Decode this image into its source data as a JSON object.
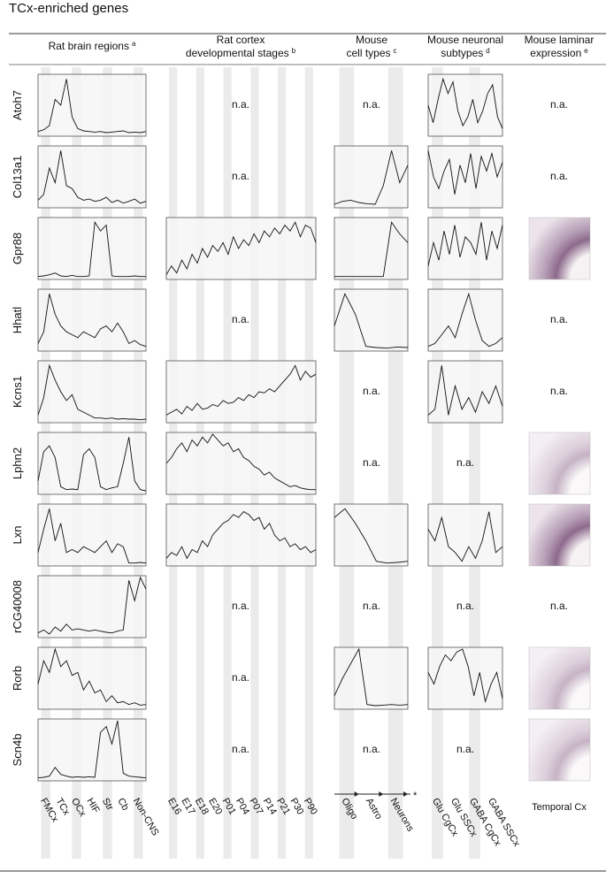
{
  "title": "TCx-enriched genes",
  "ylim": [
    0,
    100
  ],
  "columns": [
    {
      "header": [
        "Rat brain regions"
      ],
      "sup": "a",
      "labels": [
        "FMCx",
        "TCx",
        "OCx",
        "HIF",
        "Str",
        "Cb",
        "Non-CNS"
      ]
    },
    {
      "header": [
        "Rat cortex",
        "developmental stages"
      ],
      "sup": "b",
      "labels": [
        "E16",
        "E17",
        "E18",
        "E20",
        "P01",
        "P04",
        "P07",
        "P14",
        "P21",
        "P30",
        "P90"
      ]
    },
    {
      "header": [
        "Mouse",
        "cell types"
      ],
      "sup": "c",
      "labels": [
        "Oligo",
        "Astro",
        "Neurons"
      ],
      "footnote_mark": "*"
    },
    {
      "header": [
        "Mouse neuronal",
        "subtypes"
      ],
      "sup": "d",
      "labels": [
        "Glu CgCx",
        "Glu SSCx",
        "GABA CgCx",
        "GABA SSCx"
      ]
    },
    {
      "header": [
        "Mouse laminar",
        "expression"
      ],
      "sup": "e",
      "labels": [
        "Temporal Cx"
      ]
    }
  ],
  "rows": [
    {
      "gene": "Atoh7",
      "cells": [
        [
          5,
          8,
          15,
          60,
          50,
          95,
          30,
          10,
          6,
          5,
          4,
          5,
          3,
          4,
          5,
          6,
          3,
          4,
          3,
          5
        ],
        "n.a.",
        "n.a.",
        [
          50,
          20,
          60,
          95,
          70,
          90,
          40,
          15,
          30,
          60,
          20,
          40,
          70,
          85,
          30,
          10
        ],
        "n.a."
      ]
    },
    {
      "gene": "Col13a1",
      "cells": [
        [
          10,
          20,
          65,
          40,
          95,
          35,
          30,
          15,
          10,
          12,
          8,
          10,
          15,
          6,
          10,
          5,
          8,
          12,
          5,
          8
        ],
        "n.a.",
        [
          3,
          8,
          10,
          6,
          4,
          3,
          35,
          95,
          40,
          70
        ],
        [
          95,
          50,
          30,
          60,
          80,
          20,
          70,
          40,
          90,
          30,
          85,
          60,
          90,
          50,
          75
        ],
        "n.a."
      ]
    },
    {
      "gene": "Gpr88",
      "cells": [
        [
          2,
          3,
          5,
          8,
          3,
          2,
          4,
          2,
          2,
          3,
          95,
          80,
          90,
          3,
          2,
          2,
          2,
          3,
          2,
          2
        ],
        [
          5,
          20,
          8,
          30,
          15,
          40,
          25,
          50,
          35,
          55,
          45,
          60,
          40,
          70,
          50,
          65,
          55,
          75,
          60,
          80,
          70,
          85,
          75,
          90,
          80,
          95,
          70,
          90,
          85,
          60
        ],
        [
          2,
          2,
          2,
          2,
          2,
          2,
          2,
          95,
          75,
          60
        ],
        [
          20,
          60,
          30,
          80,
          40,
          90,
          35,
          70,
          60,
          40,
          95,
          30,
          80,
          50,
          90
        ],
        null
      ]
    },
    {
      "gene": "Hhatl",
      "cells": [
        [
          10,
          30,
          95,
          60,
          40,
          30,
          25,
          20,
          30,
          25,
          20,
          35,
          40,
          30,
          45,
          30,
          10,
          15,
          8,
          5
        ],
        "n.a.",
        [
          40,
          95,
          60,
          5,
          3,
          2,
          4,
          3
        ],
        [
          5,
          10,
          25,
          40,
          20,
          60,
          95,
          50,
          15,
          5,
          10,
          20
        ],
        "n.a."
      ]
    },
    {
      "gene": "Kcns1",
      "cells": [
        [
          10,
          40,
          95,
          70,
          50,
          35,
          45,
          20,
          15,
          10,
          5,
          5,
          4,
          5,
          3,
          4,
          3,
          3,
          2,
          3
        ],
        [
          10,
          15,
          20,
          12,
          25,
          18,
          30,
          20,
          22,
          28,
          25,
          35,
          30,
          32,
          40,
          35,
          45,
          40,
          50,
          48,
          55,
          50,
          60,
          70,
          80,
          95,
          70,
          85,
          75,
          80
        ],
        "n.a.",
        [
          10,
          20,
          95,
          10,
          60,
          20,
          40,
          15,
          50,
          30,
          60,
          25
        ],
        "n.a."
      ]
    },
    {
      "gene": "Lphn2",
      "cells": [
        [
          20,
          70,
          80,
          60,
          10,
          5,
          6,
          5,
          65,
          75,
          60,
          10,
          5,
          8,
          10,
          50,
          95,
          20,
          5,
          3
        ],
        [
          50,
          60,
          75,
          85,
          70,
          90,
          80,
          95,
          85,
          100,
          90,
          80,
          85,
          70,
          75,
          60,
          55,
          45,
          40,
          30,
          35,
          25,
          20,
          15,
          10,
          12,
          8,
          6,
          5,
          5
        ],
        "n.a.",
        "n.a.",
        null
      ]
    },
    {
      "gene": "Lxn",
      "cells": [
        [
          20,
          60,
          95,
          40,
          70,
          20,
          25,
          20,
          30,
          25,
          20,
          30,
          40,
          20,
          35,
          30,
          2,
          2,
          3,
          2
        ],
        [
          10,
          20,
          15,
          30,
          10,
          25,
          20,
          40,
          30,
          50,
          60,
          70,
          75,
          85,
          80,
          90,
          85,
          75,
          80,
          60,
          70,
          50,
          40,
          45,
          30,
          35,
          25,
          30,
          20,
          25
        ],
        [
          80,
          95,
          70,
          40,
          5,
          2,
          3,
          5
        ],
        [
          60,
          40,
          80,
          30,
          20,
          5,
          30,
          10,
          40,
          90,
          20,
          30
        ],
        null
      ]
    },
    {
      "gene": "rCG40008",
      "cells": [
        [
          5,
          10,
          3,
          15,
          8,
          20,
          10,
          12,
          10,
          8,
          10,
          8,
          6,
          5,
          8,
          10,
          95,
          60,
          100,
          80
        ],
        "n.a.",
        "n.a.",
        "n.a.",
        "n.a."
      ]
    },
    {
      "gene": "Rorb",
      "cells": [
        [
          40,
          80,
          60,
          100,
          70,
          80,
          55,
          60,
          30,
          45,
          25,
          30,
          10,
          20,
          8,
          10,
          5,
          8,
          4,
          5
        ],
        "n.a.",
        [
          20,
          50,
          75,
          100,
          5,
          3,
          4,
          5,
          4,
          5
        ],
        [
          60,
          40,
          70,
          90,
          80,
          95,
          100,
          70,
          20,
          60,
          10,
          40,
          60,
          15
        ],
        null
      ]
    },
    {
      "gene": "Scn4b",
      "cells": [
        [
          2,
          3,
          5,
          20,
          8,
          5,
          3,
          4,
          3,
          4,
          3,
          80,
          90,
          60,
          100,
          10,
          5,
          4,
          3,
          2
        ],
        "n.a.",
        "n.a.",
        "n.a.",
        null
      ]
    }
  ]
}
